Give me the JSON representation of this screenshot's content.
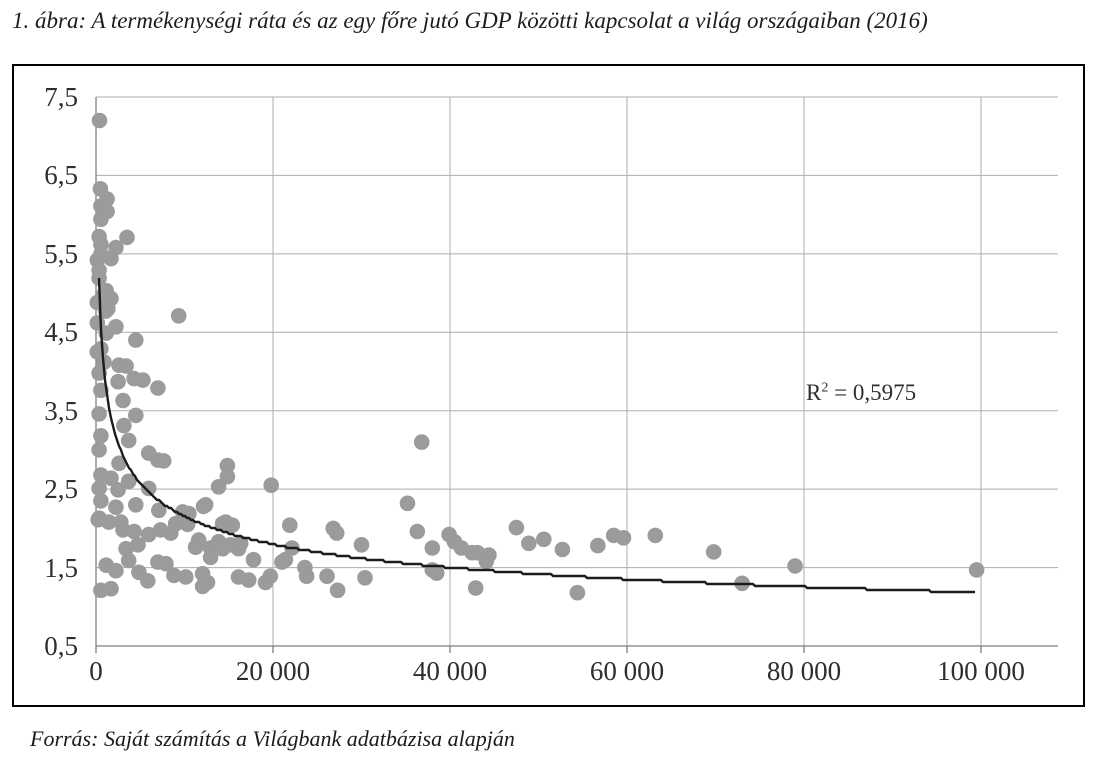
{
  "figure": {
    "title": "1. ábra: A termékenységi ráta és az egy főre jutó GDP közötti kapcsolat a világ országaiban (2016)",
    "source": "Forrás: Saját számítás a Világbank adatbázisa alapján"
  },
  "annotation": {
    "base": "R",
    "sup": "2",
    "rest": " = 0,5975"
  },
  "chart_data": {
    "type": "scatter",
    "title": "A termékenységi ráta és az egy főre jutó GDP közötti kapcsolat a világ országaiban (2016)",
    "xlabel": "",
    "ylabel": "",
    "xlim": [
      0,
      109000
    ],
    "ylim": [
      0.5,
      7.5
    ],
    "grid": true,
    "x_ticks": [
      0,
      20000,
      40000,
      60000,
      80000,
      100000
    ],
    "x_tick_labels": [
      "0",
      "20 000",
      "40 000",
      "60 000",
      "80 000",
      "100 000"
    ],
    "y_ticks": [
      0.5,
      1.5,
      2.5,
      3.5,
      4.5,
      5.5,
      6.5,
      7.5
    ],
    "y_tick_labels": [
      "0,5",
      "1,5",
      "2,5",
      "3,5",
      "4,5",
      "5,5",
      "6,5",
      "7,5"
    ],
    "marker_color": "#9b9b9b",
    "marker_radius": 7.8,
    "gridline_color": "#adadad",
    "axis_color": "#7f7f7f",
    "trendline": {
      "type": "power",
      "a": 23.6,
      "b": -0.26,
      "x_start": 340,
      "x_end": 99500,
      "color": "#1c1c1c",
      "r_squared": 0.5975
    },
    "points": [
      [
        400,
        7.2
      ],
      [
        500,
        6.33
      ],
      [
        1250,
        6.2
      ],
      [
        550,
        6.11
      ],
      [
        1250,
        6.04
      ],
      [
        550,
        5.94
      ],
      [
        350,
        5.72
      ],
      [
        3500,
        5.71
      ],
      [
        550,
        5.62
      ],
      [
        2250,
        5.58
      ],
      [
        550,
        5.5
      ],
      [
        150,
        5.42
      ],
      [
        1700,
        5.44
      ],
      [
        350,
        5.29
      ],
      [
        350,
        5.19
      ],
      [
        1150,
        5.03
      ],
      [
        900,
        4.98
      ],
      [
        150,
        4.88
      ],
      [
        1700,
        4.93
      ],
      [
        1350,
        4.8
      ],
      [
        1100,
        4.77
      ],
      [
        9350,
        4.71
      ],
      [
        150,
        4.62
      ],
      [
        2250,
        4.57
      ],
      [
        1150,
        4.49
      ],
      [
        4500,
        4.4
      ],
      [
        550,
        4.29
      ],
      [
        150,
        4.25
      ],
      [
        900,
        4.12
      ],
      [
        2600,
        4.08
      ],
      [
        3400,
        4.07
      ],
      [
        350,
        3.98
      ],
      [
        4300,
        3.91
      ],
      [
        5300,
        3.89
      ],
      [
        2500,
        3.87
      ],
      [
        7000,
        3.79
      ],
      [
        550,
        3.76
      ],
      [
        3050,
        3.63
      ],
      [
        350,
        3.46
      ],
      [
        4500,
        3.44
      ],
      [
        3150,
        3.31
      ],
      [
        550,
        3.18
      ],
      [
        3700,
        3.12
      ],
      [
        36800,
        3.1
      ],
      [
        350,
        3.0
      ],
      [
        5950,
        2.96
      ],
      [
        7000,
        2.87
      ],
      [
        7650,
        2.86
      ],
      [
        2600,
        2.83
      ],
      [
        14850,
        2.8
      ],
      [
        14850,
        2.66
      ],
      [
        550,
        2.68
      ],
      [
        1700,
        2.64
      ],
      [
        3700,
        2.6
      ],
      [
        13850,
        2.53
      ],
      [
        19800,
        2.55
      ],
      [
        350,
        2.51
      ],
      [
        2500,
        2.49
      ],
      [
        5950,
        2.51
      ],
      [
        550,
        2.35
      ],
      [
        2250,
        2.27
      ],
      [
        4500,
        2.3
      ],
      [
        7100,
        2.23
      ],
      [
        12400,
        2.3
      ],
      [
        35200,
        2.32
      ],
      [
        12150,
        2.28
      ],
      [
        350,
        2.13
      ],
      [
        2800,
        2.08
      ],
      [
        250,
        2.11
      ],
      [
        1450,
        2.08
      ],
      [
        3050,
        1.98
      ],
      [
        4300,
        1.96
      ],
      [
        5950,
        1.92
      ],
      [
        7300,
        1.98
      ],
      [
        8450,
        1.94
      ],
      [
        9000,
        2.06
      ],
      [
        10350,
        2.05
      ],
      [
        14650,
        2.08
      ],
      [
        14300,
        2.06
      ],
      [
        15400,
        2.04
      ],
      [
        21900,
        2.04
      ],
      [
        26800,
        2.0
      ],
      [
        27200,
        1.94
      ],
      [
        36300,
        1.96
      ],
      [
        39900,
        1.92
      ],
      [
        47500,
        2.01
      ],
      [
        58500,
        1.91
      ],
      [
        59600,
        1.88
      ],
      [
        63200,
        1.91
      ],
      [
        9800,
        2.21
      ],
      [
        10500,
        2.19
      ],
      [
        4750,
        1.79
      ],
      [
        3400,
        1.74
      ],
      [
        11600,
        1.85
      ],
      [
        13850,
        1.83
      ],
      [
        12950,
        1.75
      ],
      [
        16100,
        1.74
      ],
      [
        15200,
        1.79
      ],
      [
        16350,
        1.81
      ],
      [
        14300,
        1.74
      ],
      [
        11250,
        1.76
      ],
      [
        12950,
        1.63
      ],
      [
        22150,
        1.75
      ],
      [
        30000,
        1.79
      ],
      [
        38000,
        1.75
      ],
      [
        40500,
        1.83
      ],
      [
        41300,
        1.75
      ],
      [
        42500,
        1.69
      ],
      [
        43100,
        1.69
      ],
      [
        44400,
        1.66
      ],
      [
        48900,
        1.81
      ],
      [
        50600,
        1.86
      ],
      [
        52700,
        1.73
      ],
      [
        56700,
        1.78
      ],
      [
        69800,
        1.7
      ],
      [
        79000,
        1.52
      ],
      [
        17800,
        1.6
      ],
      [
        3700,
        1.59
      ],
      [
        1150,
        1.53
      ],
      [
        7000,
        1.57
      ],
      [
        7900,
        1.55
      ],
      [
        21000,
        1.57
      ],
      [
        21400,
        1.6
      ],
      [
        2250,
        1.46
      ],
      [
        4850,
        1.44
      ],
      [
        5850,
        1.33
      ],
      [
        8800,
        1.4
      ],
      [
        10150,
        1.38
      ],
      [
        12050,
        1.42
      ],
      [
        12600,
        1.31
      ],
      [
        16100,
        1.38
      ],
      [
        17250,
        1.34
      ],
      [
        19150,
        1.31
      ],
      [
        19700,
        1.39
      ],
      [
        23600,
        1.5
      ],
      [
        23800,
        1.39
      ],
      [
        26100,
        1.39
      ],
      [
        27300,
        1.21
      ],
      [
        30400,
        1.37
      ],
      [
        38000,
        1.47
      ],
      [
        38500,
        1.43
      ],
      [
        42900,
        1.24
      ],
      [
        44100,
        1.58
      ],
      [
        54400,
        1.18
      ],
      [
        73000,
        1.3
      ],
      [
        99500,
        1.47
      ],
      [
        550,
        1.21
      ],
      [
        1700,
        1.23
      ],
      [
        12050,
        1.26
      ]
    ]
  }
}
